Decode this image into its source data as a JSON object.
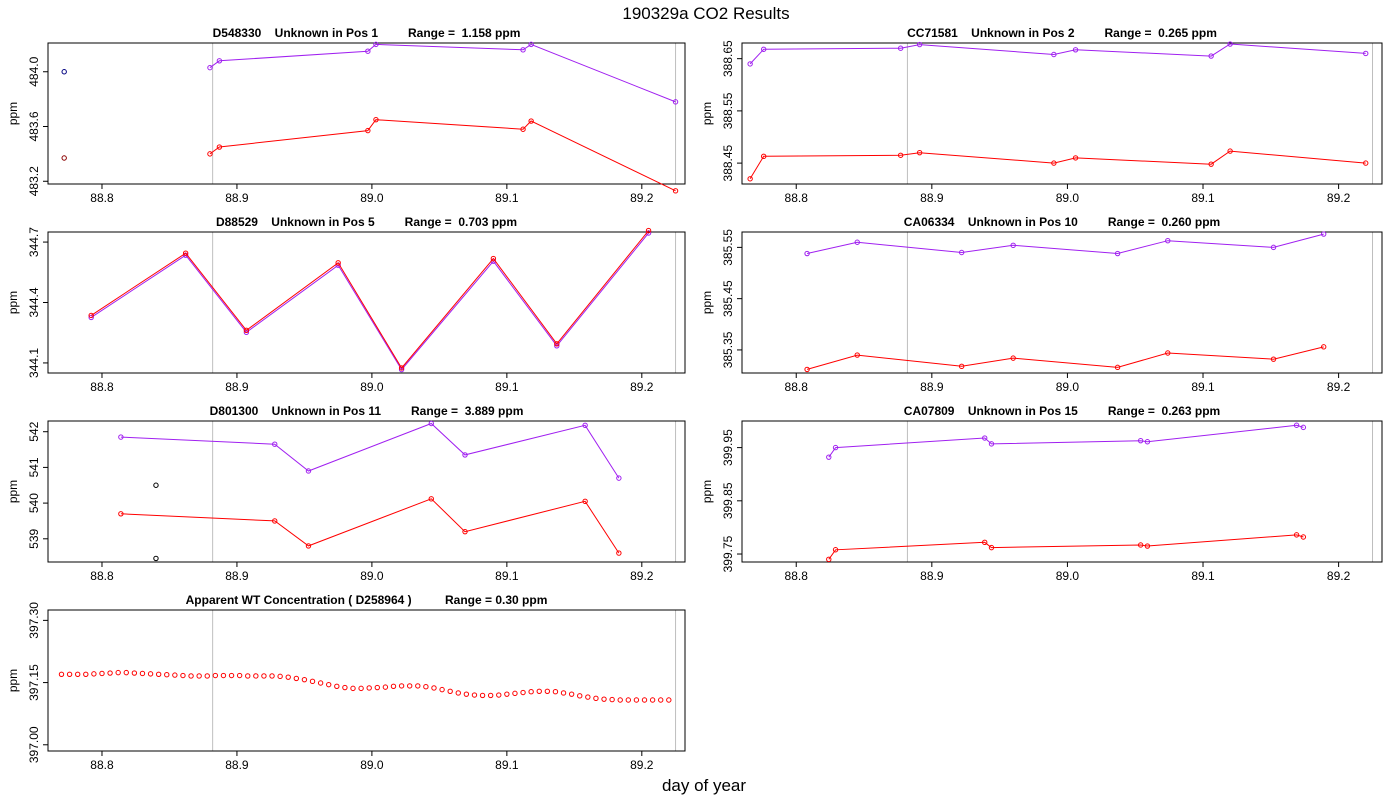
{
  "figure": {
    "title": "190329a  CO2 Results",
    "xlabel": "day of year"
  },
  "colors": {
    "series_a": "#a020f0",
    "series_b": "#ff0000",
    "extra_points": "#000080",
    "vline": "#bebebe"
  },
  "chart_data": [
    {
      "type": "line",
      "title": "D548330    Unknown in Pos 1         Range =  1.158 ppm",
      "ylabel": "ppm",
      "xlim": [
        88.76,
        89.232
      ],
      "ylim": [
        483.18,
        484.21
      ],
      "xticks": [
        88.8,
        88.9,
        89.0,
        89.1,
        89.2
      ],
      "yticks": [
        483.2,
        483.6,
        484.0
      ],
      "ytick_labels": [
        "483.2",
        "483.6",
        "484.0"
      ],
      "vlines": [
        88.882,
        89.225
      ],
      "series": [
        {
          "color": "#a020f0",
          "x": [
            88.88,
            88.887,
            88.997,
            89.003,
            89.112,
            89.118,
            89.225
          ],
          "y": [
            484.03,
            484.08,
            484.15,
            484.2,
            484.16,
            484.2,
            483.78
          ]
        },
        {
          "color": "#ff0000",
          "x": [
            88.88,
            88.887,
            88.997,
            89.003,
            89.112,
            89.118,
            89.225
          ],
          "y": [
            483.4,
            483.45,
            483.57,
            483.65,
            483.58,
            483.64,
            483.13
          ]
        }
      ],
      "points": [
        {
          "x": 88.772,
          "y": 484.0,
          "color": "#000080"
        },
        {
          "x": 88.772,
          "y": 483.37,
          "color": "#8b0000"
        }
      ]
    },
    {
      "type": "line",
      "title": "CC71581    Unknown in Pos 2         Range =  0.265 ppm",
      "ylabel": "ppm",
      "xlim": [
        88.76,
        89.232
      ],
      "ylim": [
        388.41,
        388.68
      ],
      "xticks": [
        88.8,
        88.9,
        89.0,
        89.1,
        89.2
      ],
      "yticks": [
        388.45,
        388.55,
        388.65
      ],
      "ytick_labels": [
        "388.45",
        "388.55",
        "388.65"
      ],
      "vlines": [
        88.882,
        89.225
      ],
      "series": [
        {
          "color": "#a020f0",
          "x": [
            88.766,
            88.776,
            88.877,
            88.891,
            88.99,
            89.006,
            89.106,
            89.12,
            89.22
          ],
          "y": [
            388.64,
            388.668,
            388.67,
            388.677,
            388.658,
            388.667,
            388.655,
            388.678,
            388.66
          ]
        },
        {
          "color": "#ff0000",
          "x": [
            88.766,
            88.776,
            88.877,
            88.891,
            88.99,
            89.006,
            89.106,
            89.12,
            89.22
          ],
          "y": [
            388.42,
            388.463,
            388.465,
            388.47,
            388.45,
            388.46,
            388.448,
            388.473,
            388.45
          ]
        }
      ]
    },
    {
      "type": "line",
      "title": "D88529    Unknown in Pos 5         Range =  0.703 ppm",
      "ylabel": "ppm",
      "xlim": [
        88.76,
        89.232
      ],
      "ylim": [
        344.05,
        344.75
      ],
      "xticks": [
        88.8,
        88.9,
        89.0,
        89.1,
        89.2
      ],
      "yticks": [
        344.1,
        344.4,
        344.7
      ],
      "ytick_labels": [
        "344.1",
        "344.4",
        "344.7"
      ],
      "vlines": [
        88.882,
        89.225
      ],
      "series": [
        {
          "color": "#a020f0",
          "x": [
            88.792,
            88.862,
            88.907,
            88.975,
            89.022,
            89.09,
            89.137,
            89.205
          ],
          "y": [
            344.326,
            344.635,
            344.252,
            344.585,
            344.067,
            344.605,
            344.185,
            344.745
          ]
        },
        {
          "color": "#ff0000",
          "x": [
            88.792,
            88.862,
            88.907,
            88.975,
            89.022,
            89.09,
            89.137,
            89.205
          ],
          "y": [
            344.336,
            344.645,
            344.262,
            344.597,
            344.075,
            344.618,
            344.195,
            344.757
          ]
        }
      ]
    },
    {
      "type": "line",
      "title": "CA06334    Unknown in Pos 10         Range =  0.260 ppm",
      "ylabel": "ppm",
      "xlim": [
        88.76,
        89.232
      ],
      "ylim": [
        385.305,
        385.58
      ],
      "xticks": [
        88.8,
        88.9,
        89.0,
        89.1,
        89.2
      ],
      "yticks": [
        385.35,
        385.45,
        385.55
      ],
      "ytick_labels": [
        "385.35",
        "385.45",
        "385.55"
      ],
      "vlines": [
        88.882,
        89.225
      ],
      "series": [
        {
          "color": "#a020f0",
          "x": [
            88.808,
            88.845,
            88.922,
            88.96,
            89.037,
            89.074,
            89.152,
            89.189
          ],
          "y": [
            385.538,
            385.56,
            385.54,
            385.554,
            385.538,
            385.563,
            385.55,
            385.576
          ]
        },
        {
          "color": "#ff0000",
          "x": [
            88.808,
            88.845,
            88.922,
            88.96,
            89.037,
            89.074,
            89.152,
            89.189
          ],
          "y": [
            385.312,
            385.34,
            385.318,
            385.334,
            385.316,
            385.344,
            385.332,
            385.356
          ]
        }
      ]
    },
    {
      "type": "line",
      "title": "D801300    Unknown in Pos 11         Range =  3.889 ppm",
      "ylabel": "ppm",
      "xlim": [
        88.76,
        89.232
      ],
      "ylim": [
        538.35,
        542.3
      ],
      "xticks": [
        88.8,
        88.9,
        89.0,
        89.1,
        89.2
      ],
      "yticks": [
        539,
        540,
        541,
        542
      ],
      "ytick_labels": [
        "539",
        "540",
        "541",
        "542"
      ],
      "vlines": [
        88.882,
        89.225
      ],
      "series": [
        {
          "color": "#a020f0",
          "x": [
            88.814,
            88.928,
            88.953,
            89.044,
            89.069,
            89.158,
            89.183
          ],
          "y": [
            541.85,
            541.65,
            540.9,
            542.23,
            541.35,
            542.18,
            540.7
          ]
        },
        {
          "color": "#ff0000",
          "x": [
            88.814,
            88.928,
            88.953,
            89.044,
            89.069,
            89.158,
            89.183
          ],
          "y": [
            539.7,
            539.5,
            538.8,
            540.12,
            539.2,
            540.05,
            538.6
          ]
        }
      ],
      "points": [
        {
          "x": 88.84,
          "y": 540.5,
          "color": "#000000"
        },
        {
          "x": 88.84,
          "y": 538.45,
          "color": "#000000"
        }
      ]
    },
    {
      "type": "line",
      "title": "CA07809    Unknown in Pos 15         Range =  0.263 ppm",
      "ylabel": "ppm",
      "xlim": [
        88.76,
        89.232
      ],
      "ylim": [
        399.735,
        400.0
      ],
      "xticks": [
        88.8,
        88.9,
        89.0,
        89.1,
        89.2
      ],
      "yticks": [
        399.75,
        399.85,
        399.95
      ],
      "ytick_labels": [
        "399.75",
        "399.85",
        "399.95"
      ],
      "vlines": [
        88.882,
        89.225
      ],
      "series": [
        {
          "color": "#a020f0",
          "x": [
            88.824,
            88.829,
            88.939,
            88.944,
            89.054,
            89.059,
            89.169,
            89.174
          ],
          "y": [
            399.932,
            399.95,
            399.968,
            399.957,
            399.963,
            399.961,
            399.992,
            399.988
          ]
        },
        {
          "color": "#ff0000",
          "x": [
            88.824,
            88.829,
            88.939,
            88.944,
            89.054,
            89.059,
            89.169,
            89.174
          ],
          "y": [
            399.74,
            399.758,
            399.772,
            399.762,
            399.767,
            399.765,
            399.786,
            399.782
          ]
        }
      ]
    },
    {
      "type": "scatter",
      "title": "Apparent WT Concentration ( D258964 )          Range = 0.30 ppm",
      "ylabel": "ppm",
      "xlim": [
        88.76,
        89.232
      ],
      "ylim": [
        396.985,
        397.325
      ],
      "xticks": [
        88.8,
        88.9,
        89.0,
        89.1,
        89.2
      ],
      "yticks": [
        397.0,
        397.15,
        397.3
      ],
      "ytick_labels": [
        "397.00",
        "397.15",
        "397.30"
      ],
      "vlines": [
        88.882,
        89.225
      ],
      "color": "#ff0000",
      "x_start": 88.77,
      "x_step": 0.006,
      "values": [
        397.17,
        397.17,
        397.17,
        397.17,
        397.171,
        397.172,
        397.173,
        397.174,
        397.174,
        397.173,
        397.172,
        397.171,
        397.17,
        397.169,
        397.168,
        397.167,
        397.166,
        397.166,
        397.166,
        397.167,
        397.167,
        397.167,
        397.167,
        397.166,
        397.166,
        397.166,
        397.166,
        397.165,
        397.163,
        397.16,
        397.157,
        397.153,
        397.149,
        397.145,
        397.141,
        397.138,
        397.136,
        397.136,
        397.137,
        397.138,
        397.139,
        397.141,
        397.142,
        397.142,
        397.142,
        397.14,
        397.137,
        397.133,
        397.129,
        397.125,
        397.122,
        397.12,
        397.119,
        397.119,
        397.12,
        397.122,
        397.124,
        397.126,
        397.128,
        397.129,
        397.129,
        397.128,
        397.125,
        397.122,
        397.118,
        397.115,
        397.112,
        397.11,
        397.109,
        397.108,
        397.108,
        397.108,
        397.108,
        397.108,
        397.108,
        397.108
      ]
    }
  ]
}
